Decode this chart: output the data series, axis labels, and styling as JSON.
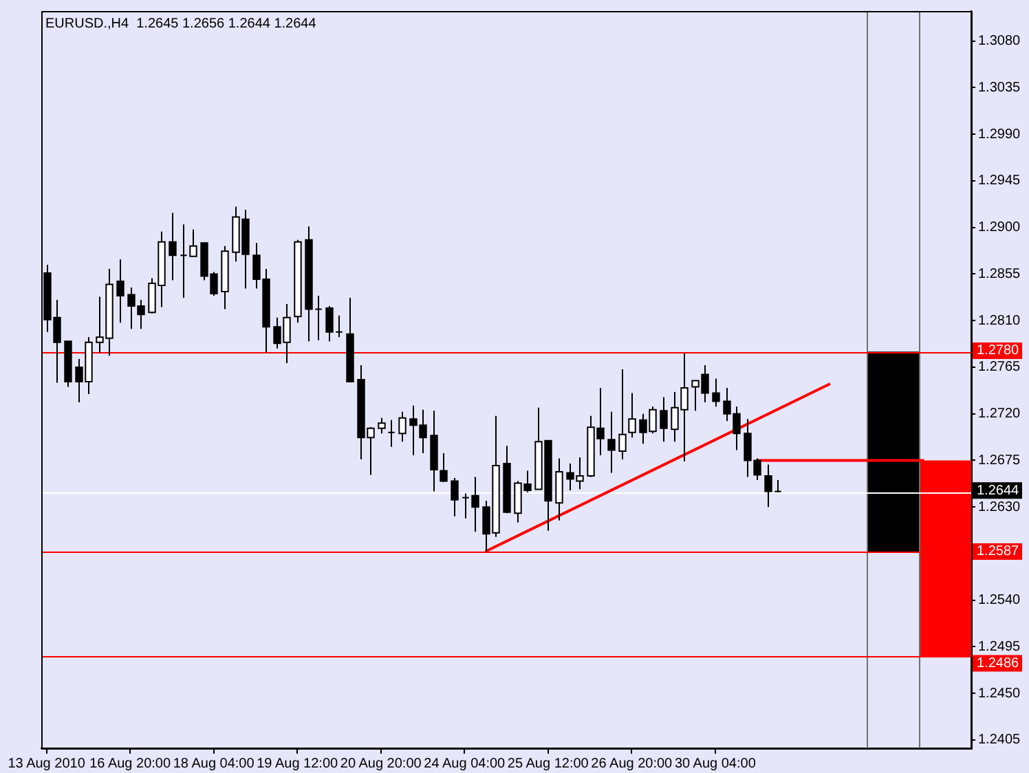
{
  "chart_data": {
    "type": "candlestick",
    "title": "EURUSD.,H4  1.2645 1.2656 1.2644 1.2644",
    "categories": [
      "13 Aug 2010",
      null,
      null,
      null,
      null,
      null,
      null,
      null,
      "16 Aug 20:00",
      null,
      null,
      null,
      null,
      null,
      null,
      null,
      "18 Aug 04:00",
      null,
      null,
      null,
      null,
      null,
      null,
      null,
      "19 Aug 12:00",
      null,
      null,
      null,
      null,
      null,
      null,
      null,
      "20 Aug 20:00",
      null,
      null,
      null,
      null,
      null,
      null,
      null,
      "24 Aug 04:00",
      null,
      null,
      null,
      null,
      null,
      null,
      null,
      "25 Aug 12:00",
      null,
      null,
      null,
      null,
      null,
      null,
      null,
      "26 Aug 20:00",
      null,
      null,
      null,
      null,
      null,
      null,
      null,
      "30 Aug 04:00",
      null,
      null,
      null,
      null,
      null,
      null,
      null,
      null,
      null,
      null,
      null,
      null,
      null,
      null,
      null,
      null,
      null,
      null,
      null,
      null,
      null,
      null,
      null,
      null
    ],
    "ohlc": [
      [
        1.2856,
        1.2864,
        1.2799,
        1.2811
      ],
      [
        1.2813,
        1.283,
        1.275,
        1.2789
      ],
      [
        1.279,
        1.279,
        1.2746,
        1.2751
      ],
      [
        1.2765,
        1.2773,
        1.2731,
        1.2751
      ],
      [
        1.2751,
        1.2794,
        1.2739,
        1.2789
      ],
      [
        1.2789,
        1.2833,
        1.2779,
        1.2794
      ],
      [
        1.2793,
        1.286,
        1.2776,
        1.2845
      ],
      [
        1.2848,
        1.2869,
        1.2808,
        1.2834
      ],
      [
        1.2835,
        1.2842,
        1.2802,
        1.2824
      ],
      [
        1.2824,
        1.283,
        1.2802,
        1.2816
      ],
      [
        1.2818,
        1.2851,
        1.2817,
        1.2846
      ],
      [
        1.2844,
        1.2896,
        1.2823,
        1.2886
      ],
      [
        1.2886,
        1.2914,
        1.2849,
        1.2873
      ],
      [
        1.2873,
        1.2903,
        1.2832,
        1.2873
      ],
      [
        1.2872,
        1.2898,
        1.2872,
        1.2882
      ],
      [
        1.2885,
        1.2885,
        1.2849,
        1.2853
      ],
      [
        1.2855,
        1.2857,
        1.2834,
        1.2836
      ],
      [
        1.2838,
        1.2882,
        1.2821,
        1.2877
      ],
      [
        1.2876,
        1.292,
        1.2867,
        1.291
      ],
      [
        1.2908,
        1.2917,
        1.2841,
        1.2874
      ],
      [
        1.2873,
        1.2885,
        1.2841,
        1.285
      ],
      [
        1.285,
        1.286,
        1.2779,
        1.2804
      ],
      [
        1.2804,
        1.2813,
        1.2783,
        1.2788
      ],
      [
        1.2789,
        1.2826,
        1.2769,
        1.2813
      ],
      [
        1.2814,
        1.2888,
        1.2808,
        1.2886
      ],
      [
        1.2888,
        1.2901,
        1.279,
        1.2821
      ],
      [
        1.2821,
        1.2834,
        1.2791,
        1.2821
      ],
      [
        1.2822,
        1.2824,
        1.279,
        1.2799
      ],
      [
        1.2799,
        1.2815,
        1.2794,
        1.2799
      ],
      [
        1.2797,
        1.2832,
        1.2751,
        1.2751
      ],
      [
        1.2753,
        1.2767,
        1.2676,
        1.2697
      ],
      [
        1.2697,
        1.2707,
        1.2661,
        1.2706
      ],
      [
        1.2706,
        1.2716,
        1.2701,
        1.2711
      ],
      [
        1.2702,
        1.2714,
        1.2688,
        1.2702
      ],
      [
        1.2701,
        1.2722,
        1.2693,
        1.2716
      ],
      [
        1.2715,
        1.2728,
        1.268,
        1.2709
      ],
      [
        1.2709,
        1.2724,
        1.2682,
        1.2697
      ],
      [
        1.2699,
        1.2723,
        1.2645,
        1.2666
      ],
      [
        1.2665,
        1.2682,
        1.2654,
        1.2655
      ],
      [
        1.2655,
        1.2658,
        1.2621,
        1.2637
      ],
      [
        1.2639,
        1.2643,
        1.2619,
        1.2639
      ],
      [
        1.2641,
        1.2659,
        1.2606,
        1.263
      ],
      [
        1.263,
        1.2636,
        1.2587,
        1.2604
      ],
      [
        1.2605,
        1.2718,
        1.2601,
        1.267
      ],
      [
        1.2672,
        1.2689,
        1.2624,
        1.2625
      ],
      [
        1.2624,
        1.2655,
        1.2615,
        1.2653
      ],
      [
        1.2652,
        1.2665,
        1.2644,
        1.2646
      ],
      [
        1.2647,
        1.2726,
        1.2647,
        1.2693
      ],
      [
        1.2694,
        1.2694,
        1.2607,
        1.2636
      ],
      [
        1.2634,
        1.2677,
        1.2617,
        1.2664
      ],
      [
        1.2663,
        1.2672,
        1.2646,
        1.2657
      ],
      [
        1.2655,
        1.2678,
        1.2647,
        1.266
      ],
      [
        1.266,
        1.2718,
        1.2659,
        1.2707
      ],
      [
        1.2706,
        1.2745,
        1.268,
        1.2696
      ],
      [
        1.2695,
        1.2722,
        1.2663,
        1.2685
      ],
      [
        1.2684,
        1.2763,
        1.2676,
        1.27
      ],
      [
        1.2702,
        1.274,
        1.2697,
        1.2715
      ],
      [
        1.2714,
        1.272,
        1.2691,
        1.2702
      ],
      [
        1.2703,
        1.2727,
        1.2701,
        1.2724
      ],
      [
        1.2723,
        1.2736,
        1.2693,
        1.2706
      ],
      [
        1.2705,
        1.2741,
        1.2693,
        1.2726
      ],
      [
        1.2724,
        1.2778,
        1.2674,
        1.2745
      ],
      [
        1.2746,
        1.2752,
        1.2723,
        1.2752
      ],
      [
        1.2758,
        1.2767,
        1.2731,
        1.274
      ],
      [
        1.274,
        1.2754,
        1.2727,
        1.2732
      ],
      [
        1.2732,
        1.2745,
        1.2713,
        1.272
      ],
      [
        1.272,
        1.2727,
        1.2685,
        1.2701
      ],
      [
        1.2701,
        1.2715,
        1.2659,
        1.2675
      ],
      [
        1.2675,
        1.2677,
        1.2656,
        1.2661
      ],
      [
        1.266,
        1.2671,
        1.263,
        1.2645
      ],
      [
        1.2645,
        1.2656,
        1.2644,
        1.2644
      ],
      null,
      null,
      null,
      null,
      null,
      null,
      null,
      null,
      null,
      null,
      null,
      null,
      null,
      null,
      null,
      null,
      null,
      null
    ],
    "series": [
      {
        "type": "line",
        "color": "#ff0000",
        "values": [
          null,
          null,
          null,
          null,
          null,
          null,
          null,
          null,
          null,
          null,
          null,
          null,
          null,
          null,
          null,
          null,
          null,
          null,
          null,
          null,
          null,
          null,
          null,
          null,
          null,
          null,
          null,
          null,
          null,
          null,
          null,
          null,
          null,
          null,
          null,
          null,
          null,
          null,
          null,
          null,
          null,
          null,
          1.2587,
          null,
          null,
          null,
          null,
          null,
          null,
          null,
          null,
          null,
          null,
          null,
          null,
          null,
          null,
          null,
          null,
          null,
          null,
          null,
          null,
          null,
          null,
          null,
          null,
          null,
          null,
          null,
          null,
          null,
          null,
          null,
          null,
          1.2749,
          null,
          null,
          null,
          null,
          null,
          null,
          null,
          null,
          null,
          null,
          null,
          null,
          null
        ]
      },
      {
        "type": "line",
        "color": "#ff0000",
        "values": [
          null,
          null,
          null,
          null,
          null,
          null,
          null,
          null,
          null,
          null,
          null,
          null,
          null,
          null,
          null,
          null,
          null,
          null,
          null,
          null,
          null,
          null,
          null,
          null,
          null,
          null,
          null,
          null,
          null,
          null,
          null,
          null,
          null,
          null,
          null,
          null,
          null,
          null,
          null,
          null,
          null,
          null,
          null,
          null,
          null,
          null,
          null,
          null,
          null,
          null,
          null,
          null,
          null,
          null,
          null,
          null,
          null,
          null,
          null,
          null,
          null,
          null,
          null,
          null,
          null,
          null,
          null,
          null,
          1.2675,
          null,
          null,
          null,
          null,
          null,
          null,
          null,
          null,
          null,
          null,
          null,
          null,
          null,
          null,
          null,
          1.2675,
          null,
          null,
          null,
          null
        ]
      }
    ],
    "ref_lines": [
      {
        "axis": "y",
        "value": 1.278,
        "label": "1.2780",
        "color": "#ff0000"
      },
      {
        "axis": "y",
        "value": 1.2587,
        "label": "1.2587",
        "color": "#ff0000"
      },
      {
        "axis": "y",
        "value": 1.2486,
        "label": "1.2486",
        "color": "#ff0000"
      },
      {
        "axis": "y",
        "value": 1.2644,
        "label": "1.2644",
        "color": "#ffffff"
      }
    ],
    "bands": [
      {
        "axis": "y",
        "from": 1.2587,
        "to": 1.278,
        "color": "#000000"
      },
      {
        "axis": "y",
        "from": 1.2486,
        "to": 1.2675,
        "color": "#ff0000"
      }
    ],
    "ylim": [
      1.2397,
      1.3109
    ],
    "yticks": [
      {
        "value": 1.308,
        "label": "1.3080"
      },
      1.3035,
      {
        "value": 1.299,
        "label": "1.2990"
      },
      1.2945,
      {
        "value": 1.29,
        "label": "1.2900"
      },
      1.2855,
      {
        "value": 1.281,
        "label": "1.2810"
      },
      1.2765,
      {
        "value": 1.272,
        "label": "1.2720"
      },
      1.2675,
      {
        "value": 1.263,
        "label": "1.2630"
      },
      {
        "value": 1.2585,
        "label": null
      },
      {
        "value": 1.254,
        "label": "1.2540"
      },
      1.2495,
      {
        "value": 1.245,
        "label": "1.2450"
      },
      1.2405
    ]
  }
}
